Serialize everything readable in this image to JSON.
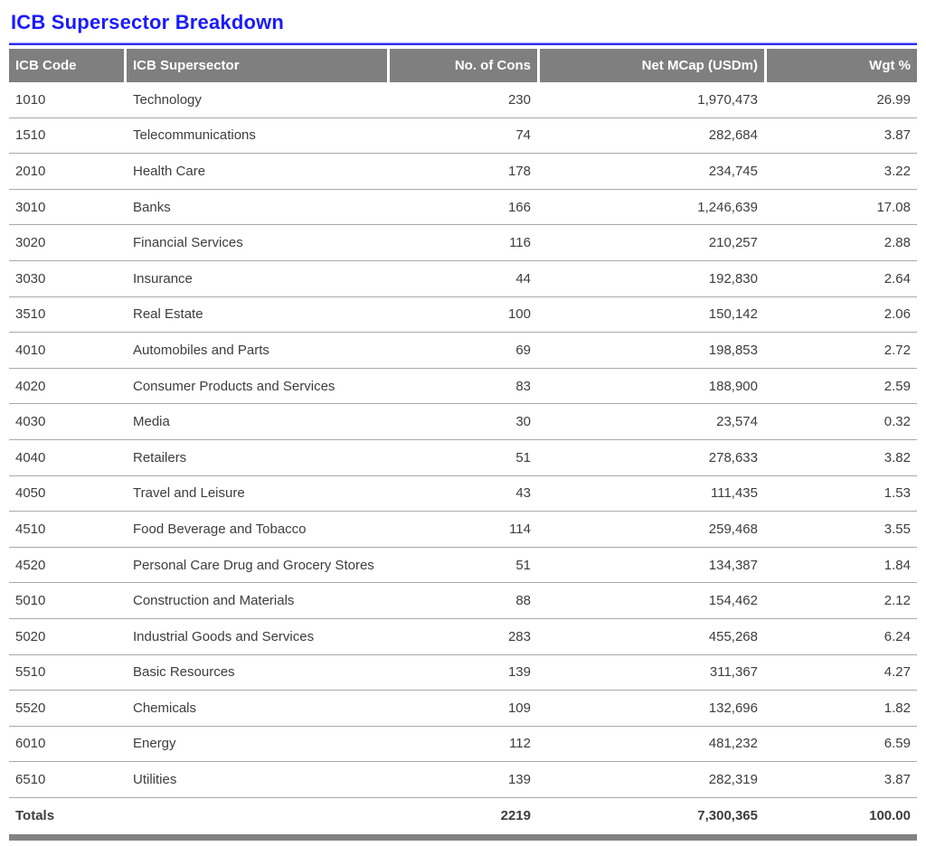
{
  "title": "ICB Supersector Breakdown",
  "colors": {
    "title_blue": "#1a1aff",
    "rule_blue": "#2d2df2",
    "header_gray": "#7f7f7f",
    "row_line_gray": "#a9a9a9",
    "text_gray": "#3d3d3d",
    "bottom_bar_gray": "#828282"
  },
  "table": {
    "columns": [
      {
        "label": "ICB Code",
        "align": "left"
      },
      {
        "label": "ICB Supersector",
        "align": "left"
      },
      {
        "label": "No. of Cons",
        "align": "right"
      },
      {
        "label": "Net MCap (USDm)",
        "align": "right"
      },
      {
        "label": "Wgt %",
        "align": "right"
      }
    ],
    "rows": [
      {
        "code": "1010",
        "supersector": "Technology",
        "cons": "230",
        "mcap": "1,970,473",
        "wgt": "26.99"
      },
      {
        "code": "1510",
        "supersector": "Telecommunications",
        "cons": "74",
        "mcap": "282,684",
        "wgt": "3.87"
      },
      {
        "code": "2010",
        "supersector": "Health Care",
        "cons": "178",
        "mcap": "234,745",
        "wgt": "3.22"
      },
      {
        "code": "3010",
        "supersector": "Banks",
        "cons": "166",
        "mcap": "1,246,639",
        "wgt": "17.08"
      },
      {
        "code": "3020",
        "supersector": "Financial Services",
        "cons": "116",
        "mcap": "210,257",
        "wgt": "2.88"
      },
      {
        "code": "3030",
        "supersector": "Insurance",
        "cons": "44",
        "mcap": "192,830",
        "wgt": "2.64"
      },
      {
        "code": "3510",
        "supersector": "Real Estate",
        "cons": "100",
        "mcap": "150,142",
        "wgt": "2.06"
      },
      {
        "code": "4010",
        "supersector": "Automobiles and Parts",
        "cons": "69",
        "mcap": "198,853",
        "wgt": "2.72"
      },
      {
        "code": "4020",
        "supersector": "Consumer Products and Services",
        "cons": "83",
        "mcap": "188,900",
        "wgt": "2.59"
      },
      {
        "code": "4030",
        "supersector": "Media",
        "cons": "30",
        "mcap": "23,574",
        "wgt": "0.32"
      },
      {
        "code": "4040",
        "supersector": "Retailers",
        "cons": "51",
        "mcap": "278,633",
        "wgt": "3.82"
      },
      {
        "code": "4050",
        "supersector": "Travel and Leisure",
        "cons": "43",
        "mcap": "111,435",
        "wgt": "1.53"
      },
      {
        "code": "4510",
        "supersector": "Food Beverage and Tobacco",
        "cons": "114",
        "mcap": "259,468",
        "wgt": "3.55"
      },
      {
        "code": "4520",
        "supersector": "Personal Care Drug and Grocery Stores",
        "cons": "51",
        "mcap": "134,387",
        "wgt": "1.84"
      },
      {
        "code": "5010",
        "supersector": "Construction and Materials",
        "cons": "88",
        "mcap": "154,462",
        "wgt": "2.12"
      },
      {
        "code": "5020",
        "supersector": "Industrial Goods and Services",
        "cons": "283",
        "mcap": "455,268",
        "wgt": "6.24"
      },
      {
        "code": "5510",
        "supersector": "Basic Resources",
        "cons": "139",
        "mcap": "311,367",
        "wgt": "4.27"
      },
      {
        "code": "5520",
        "supersector": "Chemicals",
        "cons": "109",
        "mcap": "132,696",
        "wgt": "1.82"
      },
      {
        "code": "6010",
        "supersector": "Energy",
        "cons": "112",
        "mcap": "481,232",
        "wgt": "6.59"
      },
      {
        "code": "6510",
        "supersector": "Utilities",
        "cons": "139",
        "mcap": "282,319",
        "wgt": "3.87"
      }
    ],
    "totals": {
      "label": "Totals",
      "cons": "2219",
      "mcap": "7,300,365",
      "wgt": "100.00"
    }
  }
}
